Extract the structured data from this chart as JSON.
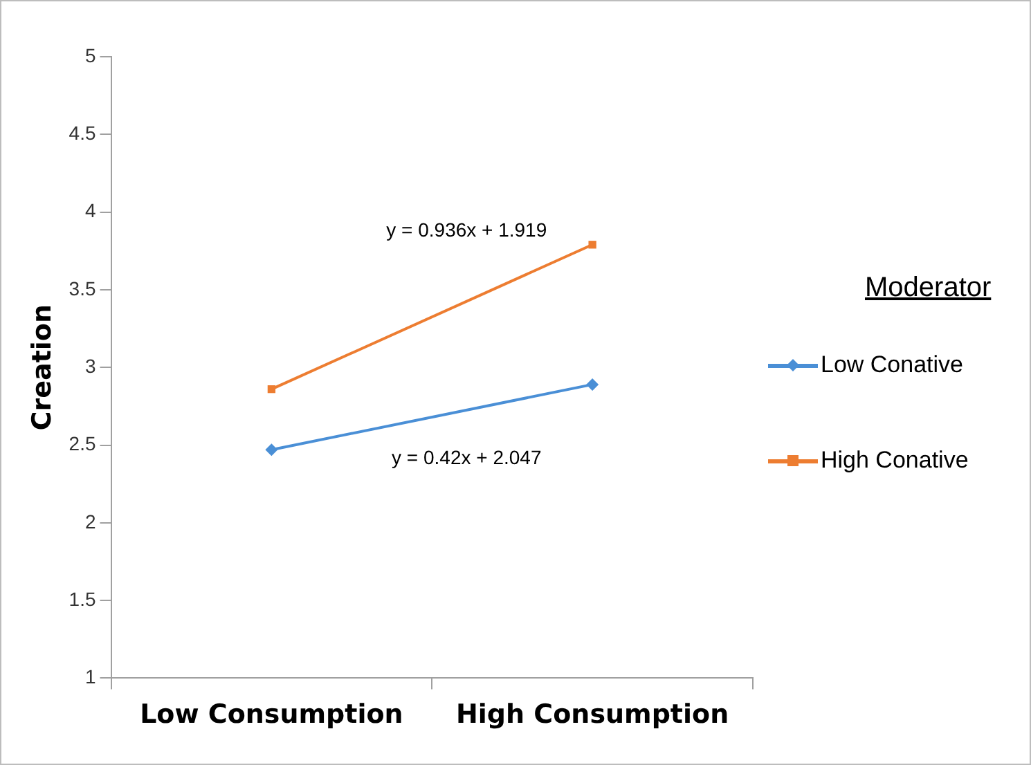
{
  "chart_data": {
    "type": "line",
    "ylabel": "Creation",
    "legend_title": "Moderator",
    "legend": "right",
    "grid": false,
    "categories": [
      "Low Consumption",
      "High Consumption"
    ],
    "ylim": [
      1,
      5
    ],
    "yticks": [
      1,
      1.5,
      2,
      2.5,
      3,
      3.5,
      4,
      4.5,
      5
    ],
    "series": [
      {
        "name": "Low Conative",
        "color": "#4a8fd6",
        "marker": "diamond",
        "values": [
          2.47,
          2.89
        ]
      },
      {
        "name": "High Conative",
        "color": "#ed7d31",
        "marker": "square",
        "values": [
          2.86,
          3.79
        ]
      }
    ],
    "annotations": [
      "y = 0.936x + 1.919",
      "y = 0.42x + 2.047"
    ]
  }
}
